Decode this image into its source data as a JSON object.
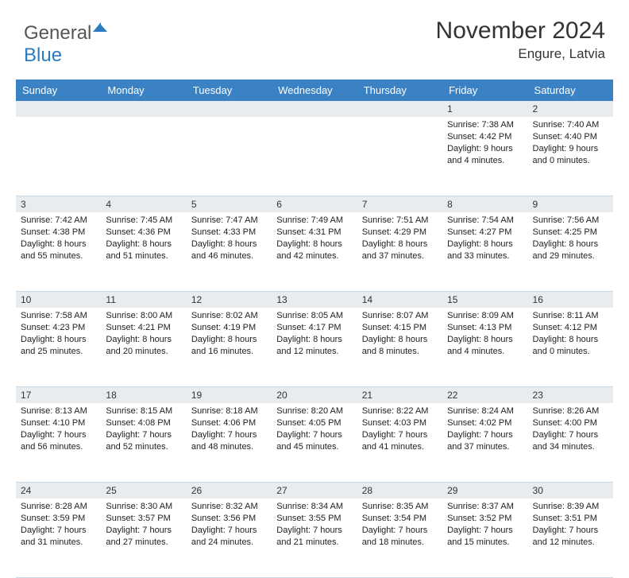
{
  "brand": {
    "part1": "General",
    "part2": "Blue"
  },
  "header": {
    "month_title": "November 2024",
    "location": "Engure, Latvia"
  },
  "colors": {
    "header_bg": "#3b82c4",
    "header_fg": "#ffffff",
    "daynum_bg": "#e8ecef",
    "border": "#c9d6e3",
    "brand_blue": "#2b7bbf"
  },
  "day_headers": [
    "Sunday",
    "Monday",
    "Tuesday",
    "Wednesday",
    "Thursday",
    "Friday",
    "Saturday"
  ],
  "weeks": [
    [
      null,
      null,
      null,
      null,
      null,
      {
        "n": "1",
        "sr": "Sunrise: 7:38 AM",
        "ss": "Sunset: 4:42 PM",
        "dl1": "Daylight: 9 hours",
        "dl2": "and 4 minutes."
      },
      {
        "n": "2",
        "sr": "Sunrise: 7:40 AM",
        "ss": "Sunset: 4:40 PM",
        "dl1": "Daylight: 9 hours",
        "dl2": "and 0 minutes."
      }
    ],
    [
      {
        "n": "3",
        "sr": "Sunrise: 7:42 AM",
        "ss": "Sunset: 4:38 PM",
        "dl1": "Daylight: 8 hours",
        "dl2": "and 55 minutes."
      },
      {
        "n": "4",
        "sr": "Sunrise: 7:45 AM",
        "ss": "Sunset: 4:36 PM",
        "dl1": "Daylight: 8 hours",
        "dl2": "and 51 minutes."
      },
      {
        "n": "5",
        "sr": "Sunrise: 7:47 AM",
        "ss": "Sunset: 4:33 PM",
        "dl1": "Daylight: 8 hours",
        "dl2": "and 46 minutes."
      },
      {
        "n": "6",
        "sr": "Sunrise: 7:49 AM",
        "ss": "Sunset: 4:31 PM",
        "dl1": "Daylight: 8 hours",
        "dl2": "and 42 minutes."
      },
      {
        "n": "7",
        "sr": "Sunrise: 7:51 AM",
        "ss": "Sunset: 4:29 PM",
        "dl1": "Daylight: 8 hours",
        "dl2": "and 37 minutes."
      },
      {
        "n": "8",
        "sr": "Sunrise: 7:54 AM",
        "ss": "Sunset: 4:27 PM",
        "dl1": "Daylight: 8 hours",
        "dl2": "and 33 minutes."
      },
      {
        "n": "9",
        "sr": "Sunrise: 7:56 AM",
        "ss": "Sunset: 4:25 PM",
        "dl1": "Daylight: 8 hours",
        "dl2": "and 29 minutes."
      }
    ],
    [
      {
        "n": "10",
        "sr": "Sunrise: 7:58 AM",
        "ss": "Sunset: 4:23 PM",
        "dl1": "Daylight: 8 hours",
        "dl2": "and 25 minutes."
      },
      {
        "n": "11",
        "sr": "Sunrise: 8:00 AM",
        "ss": "Sunset: 4:21 PM",
        "dl1": "Daylight: 8 hours",
        "dl2": "and 20 minutes."
      },
      {
        "n": "12",
        "sr": "Sunrise: 8:02 AM",
        "ss": "Sunset: 4:19 PM",
        "dl1": "Daylight: 8 hours",
        "dl2": "and 16 minutes."
      },
      {
        "n": "13",
        "sr": "Sunrise: 8:05 AM",
        "ss": "Sunset: 4:17 PM",
        "dl1": "Daylight: 8 hours",
        "dl2": "and 12 minutes."
      },
      {
        "n": "14",
        "sr": "Sunrise: 8:07 AM",
        "ss": "Sunset: 4:15 PM",
        "dl1": "Daylight: 8 hours",
        "dl2": "and 8 minutes."
      },
      {
        "n": "15",
        "sr": "Sunrise: 8:09 AM",
        "ss": "Sunset: 4:13 PM",
        "dl1": "Daylight: 8 hours",
        "dl2": "and 4 minutes."
      },
      {
        "n": "16",
        "sr": "Sunrise: 8:11 AM",
        "ss": "Sunset: 4:12 PM",
        "dl1": "Daylight: 8 hours",
        "dl2": "and 0 minutes."
      }
    ],
    [
      {
        "n": "17",
        "sr": "Sunrise: 8:13 AM",
        "ss": "Sunset: 4:10 PM",
        "dl1": "Daylight: 7 hours",
        "dl2": "and 56 minutes."
      },
      {
        "n": "18",
        "sr": "Sunrise: 8:15 AM",
        "ss": "Sunset: 4:08 PM",
        "dl1": "Daylight: 7 hours",
        "dl2": "and 52 minutes."
      },
      {
        "n": "19",
        "sr": "Sunrise: 8:18 AM",
        "ss": "Sunset: 4:06 PM",
        "dl1": "Daylight: 7 hours",
        "dl2": "and 48 minutes."
      },
      {
        "n": "20",
        "sr": "Sunrise: 8:20 AM",
        "ss": "Sunset: 4:05 PM",
        "dl1": "Daylight: 7 hours",
        "dl2": "and 45 minutes."
      },
      {
        "n": "21",
        "sr": "Sunrise: 8:22 AM",
        "ss": "Sunset: 4:03 PM",
        "dl1": "Daylight: 7 hours",
        "dl2": "and 41 minutes."
      },
      {
        "n": "22",
        "sr": "Sunrise: 8:24 AM",
        "ss": "Sunset: 4:02 PM",
        "dl1": "Daylight: 7 hours",
        "dl2": "and 37 minutes."
      },
      {
        "n": "23",
        "sr": "Sunrise: 8:26 AM",
        "ss": "Sunset: 4:00 PM",
        "dl1": "Daylight: 7 hours",
        "dl2": "and 34 minutes."
      }
    ],
    [
      {
        "n": "24",
        "sr": "Sunrise: 8:28 AM",
        "ss": "Sunset: 3:59 PM",
        "dl1": "Daylight: 7 hours",
        "dl2": "and 31 minutes."
      },
      {
        "n": "25",
        "sr": "Sunrise: 8:30 AM",
        "ss": "Sunset: 3:57 PM",
        "dl1": "Daylight: 7 hours",
        "dl2": "and 27 minutes."
      },
      {
        "n": "26",
        "sr": "Sunrise: 8:32 AM",
        "ss": "Sunset: 3:56 PM",
        "dl1": "Daylight: 7 hours",
        "dl2": "and 24 minutes."
      },
      {
        "n": "27",
        "sr": "Sunrise: 8:34 AM",
        "ss": "Sunset: 3:55 PM",
        "dl1": "Daylight: 7 hours",
        "dl2": "and 21 minutes."
      },
      {
        "n": "28",
        "sr": "Sunrise: 8:35 AM",
        "ss": "Sunset: 3:54 PM",
        "dl1": "Daylight: 7 hours",
        "dl2": "and 18 minutes."
      },
      {
        "n": "29",
        "sr": "Sunrise: 8:37 AM",
        "ss": "Sunset: 3:52 PM",
        "dl1": "Daylight: 7 hours",
        "dl2": "and 15 minutes."
      },
      {
        "n": "30",
        "sr": "Sunrise: 8:39 AM",
        "ss": "Sunset: 3:51 PM",
        "dl1": "Daylight: 7 hours",
        "dl2": "and 12 minutes."
      }
    ]
  ]
}
